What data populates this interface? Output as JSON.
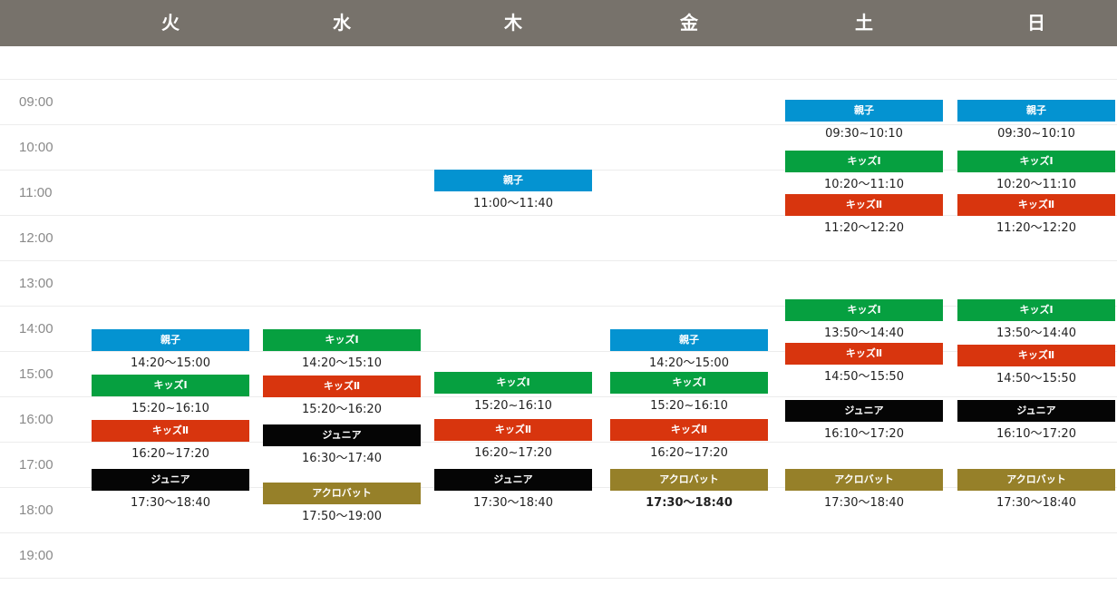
{
  "colors": {
    "header": "#77726b",
    "oyako": "#0493d1",
    "kids1": "#06a040",
    "kids2": "#d8350e",
    "junior": "#050505",
    "acro": "#968029"
  },
  "days": [
    "火",
    "水",
    "木",
    "金",
    "土",
    "日"
  ],
  "times": [
    "09:00",
    "10:00",
    "11:00",
    "12:00",
    "13:00",
    "14:00",
    "15:00",
    "16:00",
    "17:00",
    "18:00",
    "19:00"
  ],
  "class_labels": {
    "oyako": "親子",
    "kids1": "キッズⅠ",
    "kids2": "キッズⅡ",
    "junior": "ジュニア",
    "acro": "アクロバット"
  },
  "schedule": [
    {
      "day": "火",
      "classes": [
        {
          "type": "oyako",
          "time": "14:20〜15:00"
        },
        {
          "type": "kids1",
          "time": "15:20~16:10"
        },
        {
          "type": "kids2",
          "time": "16:20~17:20"
        },
        {
          "type": "junior",
          "time": "17:30〜18:40"
        }
      ]
    },
    {
      "day": "水",
      "classes": [
        {
          "type": "kids1",
          "time": "14:20〜15:10"
        },
        {
          "type": "kids2",
          "time": "15:20〜16:20"
        },
        {
          "type": "junior",
          "time": "16:30〜17:40"
        },
        {
          "type": "acro",
          "time": "17:50〜19:00"
        }
      ]
    },
    {
      "day": "木",
      "classes": [
        {
          "type": "oyako",
          "time": "11:00〜11:40"
        },
        {
          "type": "kids1",
          "time": "15:20~16:10"
        },
        {
          "type": "kids2",
          "time": "16:20~17:20"
        },
        {
          "type": "junior",
          "time": "17:30〜18:40"
        }
      ]
    },
    {
      "day": "金",
      "classes": [
        {
          "type": "oyako",
          "time": "14:20〜15:00"
        },
        {
          "type": "kids1",
          "time": "15:20~16:10"
        },
        {
          "type": "kids2",
          "time": "16:20~17:20"
        },
        {
          "type": "acro",
          "time": "17:30〜18:40"
        }
      ]
    },
    {
      "day": "土",
      "classes": [
        {
          "type": "oyako",
          "time": "09:30~10:10"
        },
        {
          "type": "kids1",
          "time": "10:20〜11:10"
        },
        {
          "type": "kids2",
          "time": "11:20〜12:20"
        },
        {
          "type": "kids1",
          "time": "13:50〜14:40"
        },
        {
          "type": "kids2",
          "time": "14:50〜15:50"
        },
        {
          "type": "junior",
          "time": "16:10〜17:20"
        },
        {
          "type": "acro",
          "time": "17:30〜18:40"
        }
      ]
    },
    {
      "day": "日",
      "classes": [
        {
          "type": "oyako",
          "time": "09:30~10:10"
        },
        {
          "type": "kids1",
          "time": "10:20〜11:10"
        },
        {
          "type": "kids2",
          "time": "11:20〜12:20"
        },
        {
          "type": "kids1",
          "time": "13:50〜14:40"
        },
        {
          "type": "kids2",
          "time": "14:50〜15:50"
        },
        {
          "type": "junior",
          "time": "16:10〜17:20"
        },
        {
          "type": "acro",
          "time": "17:30〜18:40"
        }
      ]
    }
  ]
}
